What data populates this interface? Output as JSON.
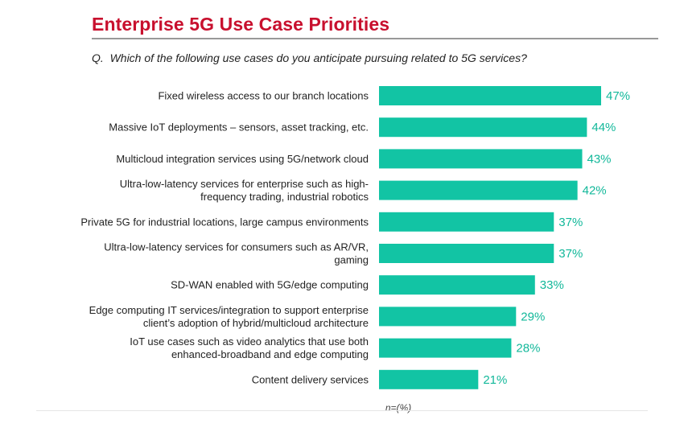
{
  "header": {
    "title": "Enterprise 5G Use Case Priorities",
    "question_prefix": "Q.",
    "question": "Which of the following use cases do you anticipate pursuing related to 5G services?"
  },
  "colors": {
    "title": "#c8102e",
    "bar": "#12c4a4",
    "value_label": "#12b89a",
    "category_label": "#222222"
  },
  "chart_data": {
    "type": "bar",
    "orientation": "horizontal",
    "categories": [
      [
        "Fixed wireless access to our branch locations"
      ],
      [
        "Massive IoT deployments – sensors, asset tracking, etc."
      ],
      [
        "Multicloud integration services using 5G/network cloud"
      ],
      [
        "Ultra-low-latency services for enterprise such as high-",
        "frequency trading, industrial robotics"
      ],
      [
        "Private 5G for industrial locations, large campus environments"
      ],
      [
        "Ultra-low-latency services for consumers such as AR/VR,",
        "gaming"
      ],
      [
        "SD-WAN enabled with 5G/edge computing"
      ],
      [
        "Edge computing IT services/integration to support enterprise",
        "client’s adoption of hybrid/multicloud architecture"
      ],
      [
        "IoT use cases such as video analytics that use both",
        "enhanced-broadband and edge computing"
      ],
      [
        "Content delivery services"
      ]
    ],
    "values": [
      47,
      44,
      43,
      42,
      37,
      37,
      33,
      29,
      28,
      21
    ],
    "value_labels": [
      "47%",
      "44%",
      "43%",
      "42%",
      "37%",
      "37%",
      "33%",
      "29%",
      "28%",
      "21%"
    ],
    "xlabel": "n=(%)",
    "xlim": [
      0,
      47
    ],
    "grid": false,
    "legend": "none"
  }
}
